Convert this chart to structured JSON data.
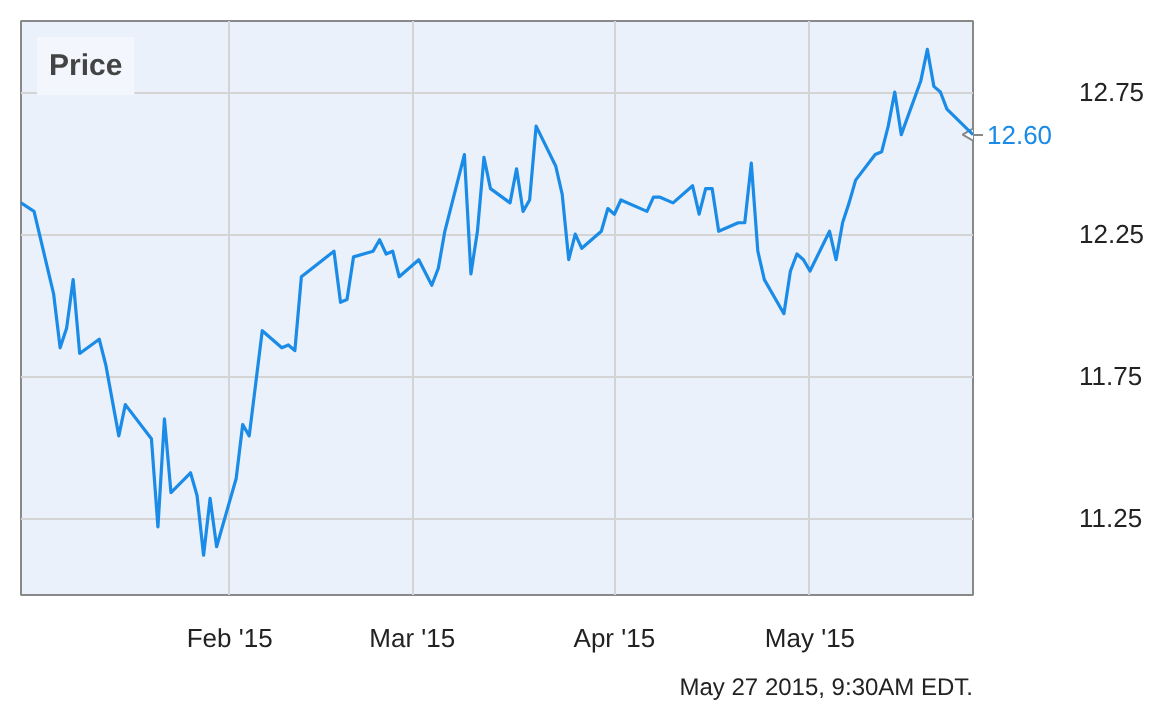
{
  "chart_data": {
    "type": "line",
    "title": "Price",
    "x": [
      "2014-12-31",
      "2015-01-02",
      "2015-01-05",
      "2015-01-06",
      "2015-01-07",
      "2015-01-08",
      "2015-01-09",
      "2015-01-12",
      "2015-01-13",
      "2015-01-15",
      "2015-01-16",
      "2015-01-20",
      "2015-01-21",
      "2015-01-22",
      "2015-01-23",
      "2015-01-26",
      "2015-01-27",
      "2015-01-28",
      "2015-01-29",
      "2015-01-30",
      "2015-02-02",
      "2015-02-03",
      "2015-02-04",
      "2015-02-06",
      "2015-02-09",
      "2015-02-10",
      "2015-02-11",
      "2015-02-12",
      "2015-02-17",
      "2015-02-18",
      "2015-02-19",
      "2015-02-20",
      "2015-02-23",
      "2015-02-24",
      "2015-02-25",
      "2015-02-26",
      "2015-02-27",
      "2015-03-02",
      "2015-03-04",
      "2015-03-05",
      "2015-03-06",
      "2015-03-09",
      "2015-03-10",
      "2015-03-11",
      "2015-03-12",
      "2015-03-13",
      "2015-03-16",
      "2015-03-17",
      "2015-03-18",
      "2015-03-19",
      "2015-03-20",
      "2015-03-23",
      "2015-03-24",
      "2015-03-25",
      "2015-03-26",
      "2015-03-27",
      "2015-03-30",
      "2015-03-31",
      "2015-04-01",
      "2015-04-02",
      "2015-04-06",
      "2015-04-07",
      "2015-04-08",
      "2015-04-10",
      "2015-04-13",
      "2015-04-14",
      "2015-04-15",
      "2015-04-16",
      "2015-04-17",
      "2015-04-20",
      "2015-04-21",
      "2015-04-22",
      "2015-04-23",
      "2015-04-24",
      "2015-04-27",
      "2015-04-28",
      "2015-04-29",
      "2015-04-30",
      "2015-05-01",
      "2015-05-04",
      "2015-05-05",
      "2015-05-06",
      "2015-05-07",
      "2015-05-08",
      "2015-05-11",
      "2015-05-12",
      "2015-05-13",
      "2015-05-14",
      "2015-05-15",
      "2015-05-18",
      "2015-05-19",
      "2015-05-20",
      "2015-05-21",
      "2015-05-22",
      "2015-05-26"
    ],
    "series": [
      {
        "color": "#1a8be6",
        "values": [
          12.36,
          12.33,
          12.04,
          11.85,
          11.92,
          12.09,
          11.83,
          11.88,
          11.79,
          11.54,
          11.65,
          11.53,
          11.22,
          11.6,
          11.34,
          11.41,
          11.33,
          11.12,
          11.32,
          11.15,
          11.39,
          11.58,
          11.54,
          11.91,
          11.85,
          11.86,
          11.84,
          12.1,
          12.19,
          12.01,
          12.02,
          12.17,
          12.19,
          12.23,
          12.18,
          12.19,
          12.1,
          12.16,
          12.07,
          12.13,
          12.26,
          12.53,
          12.11,
          12.26,
          12.52,
          12.41,
          12.36,
          12.48,
          12.33,
          12.37,
          12.63,
          12.49,
          12.39,
          12.16,
          12.25,
          12.2,
          12.26,
          12.34,
          12.32,
          12.37,
          12.33,
          12.38,
          12.38,
          12.36,
          12.42,
          12.32,
          12.41,
          12.41,
          12.26,
          12.29,
          12.29,
          12.5,
          12.19,
          12.09,
          11.97,
          12.12,
          12.18,
          12.16,
          12.12,
          12.26,
          12.16,
          12.29,
          12.36,
          12.44,
          12.53,
          12.54,
          12.63,
          12.75,
          12.6,
          12.79,
          12.9,
          12.77,
          12.75,
          12.69,
          12.6
        ]
      }
    ],
    "xlim": [
      "2014-12-31",
      "2015-05-26"
    ],
    "ylim": [
      10.98,
      13.0
    ],
    "xticks": [
      {
        "value": "2015-02-01",
        "label": "Feb '15"
      },
      {
        "value": "2015-03-01",
        "label": "Mar '15"
      },
      {
        "value": "2015-04-01",
        "label": "Apr '15"
      },
      {
        "value": "2015-05-01",
        "label": "May '15"
      }
    ],
    "yticks": [
      11.25,
      11.75,
      12.25,
      12.75
    ],
    "grid": true,
    "marker": "none",
    "line_style": "solid",
    "annotations": [
      {
        "text": "12.60",
        "x": "2015-05-26",
        "y": 12.6
      },
      "May 27 2015, 9:30AM EDT."
    ]
  }
}
